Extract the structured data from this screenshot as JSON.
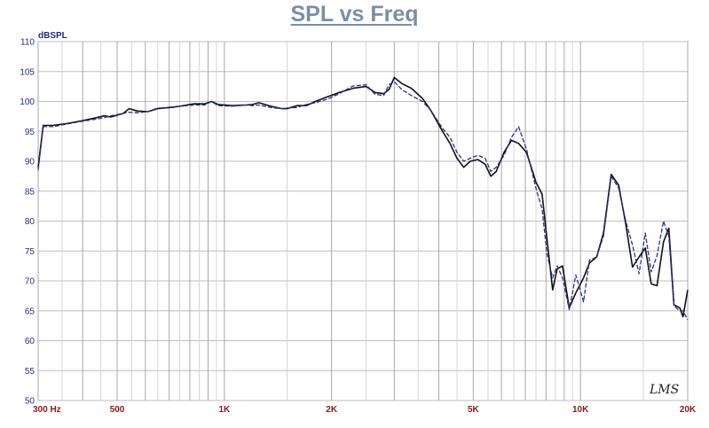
{
  "chart_data": {
    "type": "line",
    "title": "SPL vs Freq",
    "ylabel": "dBSPL",
    "xlabel": "",
    "xscale": "log",
    "xlim": [
      300,
      20000
    ],
    "ylim": [
      50,
      110
    ],
    "grid": true,
    "yticks": [
      110,
      105,
      100,
      95,
      90,
      85,
      80,
      75,
      70,
      65,
      60,
      55,
      50
    ],
    "xticks": [
      {
        "value": 300,
        "label": "300 Hz"
      },
      {
        "value": 500,
        "label": "500"
      },
      {
        "value": 1000,
        "label": "1K"
      },
      {
        "value": 2000,
        "label": "2K"
      },
      {
        "value": 5000,
        "label": "5K"
      },
      {
        "value": 10000,
        "label": "10K"
      },
      {
        "value": 20000,
        "label": "20K"
      }
    ],
    "watermark": "LMS",
    "series": [
      {
        "color": "#111111",
        "points": [
          [
            300,
            89
          ],
          [
            310,
            96
          ],
          [
            330,
            96
          ],
          [
            360,
            96.3
          ],
          [
            400,
            96.8
          ],
          [
            430,
            97.2
          ],
          [
            460,
            97.6
          ],
          [
            480,
            97.4
          ],
          [
            520,
            98
          ],
          [
            540,
            98.8
          ],
          [
            570,
            98.4
          ],
          [
            610,
            98.3
          ],
          [
            650,
            98.8
          ],
          [
            700,
            99
          ],
          [
            750,
            99.2
          ],
          [
            820,
            99.6
          ],
          [
            880,
            99.6
          ],
          [
            920,
            100
          ],
          [
            960,
            99.5
          ],
          [
            1050,
            99.3
          ],
          [
            1150,
            99.4
          ],
          [
            1200,
            99.5
          ],
          [
            1250,
            99.8
          ],
          [
            1350,
            99.2
          ],
          [
            1450,
            98.8
          ],
          [
            1500,
            98.8
          ],
          [
            1600,
            99.3
          ],
          [
            1700,
            99.3
          ],
          [
            1800,
            100
          ],
          [
            1950,
            100.8
          ],
          [
            2100,
            101.5
          ],
          [
            2300,
            102.2
          ],
          [
            2500,
            102.5
          ],
          [
            2650,
            101.5
          ],
          [
            2800,
            101.3
          ],
          [
            2900,
            102
          ],
          [
            3000,
            104
          ],
          [
            3150,
            103
          ],
          [
            3350,
            102.2
          ],
          [
            3600,
            100.5
          ],
          [
            3800,
            98.5
          ],
          [
            4100,
            95
          ],
          [
            4300,
            93
          ],
          [
            4500,
            90.5
          ],
          [
            4700,
            89
          ],
          [
            4900,
            90
          ],
          [
            5150,
            90.3
          ],
          [
            5400,
            89.5
          ],
          [
            5600,
            87.5
          ],
          [
            5800,
            88.3
          ],
          [
            6100,
            91.5
          ],
          [
            6400,
            93.5
          ],
          [
            6700,
            93
          ],
          [
            7050,
            91.5
          ],
          [
            7500,
            86.5
          ],
          [
            7800,
            84.5
          ],
          [
            8050,
            77
          ],
          [
            8350,
            68.5
          ],
          [
            8600,
            72
          ],
          [
            8900,
            72.5
          ],
          [
            9300,
            65.5
          ],
          [
            9700,
            68
          ],
          [
            10200,
            70.5
          ],
          [
            10600,
            73
          ],
          [
            11100,
            74
          ],
          [
            11600,
            78
          ],
          [
            12200,
            87.8
          ],
          [
            12800,
            86
          ],
          [
            13400,
            79.5
          ],
          [
            14000,
            72.3
          ],
          [
            14600,
            74
          ],
          [
            15200,
            75.5
          ],
          [
            15800,
            69.5
          ],
          [
            16400,
            69.2
          ],
          [
            17100,
            76.5
          ],
          [
            17700,
            78.8
          ],
          [
            18300,
            66
          ],
          [
            19000,
            65.5
          ],
          [
            19400,
            64
          ],
          [
            20000,
            68.5
          ]
        ]
      },
      {
        "color": "#2c2f8f",
        "points": [
          [
            300,
            88.5
          ],
          [
            310,
            95.8
          ],
          [
            330,
            95.8
          ],
          [
            360,
            96.2
          ],
          [
            400,
            96.7
          ],
          [
            430,
            97
          ],
          [
            460,
            97.3
          ],
          [
            480,
            97.6
          ],
          [
            520,
            98
          ],
          [
            540,
            98.2
          ],
          [
            570,
            98.1
          ],
          [
            610,
            98.3
          ],
          [
            650,
            98.9
          ],
          [
            700,
            98.9
          ],
          [
            750,
            99.2
          ],
          [
            820,
            99.4
          ],
          [
            880,
            99.4
          ],
          [
            920,
            100
          ],
          [
            960,
            99.3
          ],
          [
            1050,
            99.2
          ],
          [
            1150,
            99.4
          ],
          [
            1200,
            99.3
          ],
          [
            1250,
            99.4
          ],
          [
            1350,
            99
          ],
          [
            1450,
            98.8
          ],
          [
            1500,
            98.9
          ],
          [
            1600,
            99
          ],
          [
            1700,
            99.5
          ],
          [
            1800,
            99.8
          ],
          [
            1950,
            100.4
          ],
          [
            2100,
            101.3
          ],
          [
            2300,
            102.6
          ],
          [
            2500,
            102.8
          ],
          [
            2650,
            101.2
          ],
          [
            2800,
            101
          ],
          [
            2900,
            102.8
          ],
          [
            3000,
            103.3
          ],
          [
            3150,
            102
          ],
          [
            3350,
            101
          ],
          [
            3600,
            100
          ],
          [
            3800,
            98.5
          ],
          [
            4100,
            95.5
          ],
          [
            4300,
            94
          ],
          [
            4500,
            91.5
          ],
          [
            4700,
            90
          ],
          [
            4900,
            90.5
          ],
          [
            5150,
            91
          ],
          [
            5400,
            90.5
          ],
          [
            5600,
            88.3
          ],
          [
            5800,
            89
          ],
          [
            6100,
            91
          ],
          [
            6400,
            94
          ],
          [
            6700,
            95.8
          ],
          [
            7050,
            92
          ],
          [
            7500,
            85.5
          ],
          [
            7800,
            82
          ],
          [
            8050,
            74.5
          ],
          [
            8350,
            70.5
          ],
          [
            8600,
            72.5
          ],
          [
            8900,
            70.5
          ],
          [
            9300,
            65.2
          ],
          [
            9700,
            71
          ],
          [
            10200,
            66.5
          ],
          [
            10600,
            73.5
          ],
          [
            11100,
            74
          ],
          [
            11600,
            77.5
          ],
          [
            12200,
            87.5
          ],
          [
            12800,
            85.5
          ],
          [
            13400,
            80
          ],
          [
            14000,
            76
          ],
          [
            14600,
            71.2
          ],
          [
            15200,
            78
          ],
          [
            15800,
            71.5
          ],
          [
            16400,
            74.2
          ],
          [
            17100,
            80
          ],
          [
            17700,
            77.5
          ],
          [
            18300,
            65.8
          ],
          [
            19000,
            65
          ],
          [
            19400,
            65
          ],
          [
            20000,
            63.5
          ]
        ]
      }
    ]
  }
}
